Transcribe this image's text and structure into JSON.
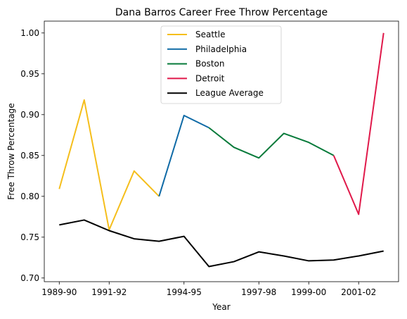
{
  "chart_data": {
    "type": "line",
    "title": "Dana Barros Career Free Throw Percentage",
    "xlabel": "Year",
    "ylabel": "Free Throw Percentage",
    "x": [
      "1989-90",
      "1990-91",
      "1991-92",
      "1992-93",
      "1993-94",
      "1994-95",
      "1995-96",
      "1996-97",
      "1997-98",
      "1998-99",
      "1999-00",
      "2000-01",
      "2001-02",
      "2002-03"
    ],
    "xticks": [
      "1989-90",
      "1991-92",
      "1994-95",
      "1997-98",
      "1999-00",
      "2001-02"
    ],
    "ylim": [
      0.7,
      1.0
    ],
    "yticks": [
      0.7,
      0.75,
      0.8,
      0.85,
      0.9,
      0.95,
      1.0
    ],
    "grid": false,
    "legend_position": "top-center",
    "series": [
      {
        "name": "Seattle",
        "color": "#f5be1b",
        "points": [
          [
            0,
            0.809
          ],
          [
            1,
            0.918
          ],
          [
            2,
            0.759
          ],
          [
            3,
            0.831
          ],
          [
            4,
            0.8
          ]
        ]
      },
      {
        "name": "Philadelphia",
        "color": "#0f6aa6",
        "points": [
          [
            4,
            0.8
          ],
          [
            5,
            0.899
          ],
          [
            6,
            0.884
          ]
        ]
      },
      {
        "name": "Boston",
        "color": "#077a3a",
        "points": [
          [
            6,
            0.884
          ],
          [
            7,
            0.86
          ],
          [
            8,
            0.847
          ],
          [
            9,
            0.877
          ],
          [
            10,
            0.866
          ],
          [
            11,
            0.85
          ]
        ]
      },
      {
        "name": "Detroit",
        "color": "#e0194a",
        "points": [
          [
            11,
            0.85
          ],
          [
            12,
            0.778
          ],
          [
            13,
            1.0
          ]
        ]
      },
      {
        "name": "League Average",
        "color": "#000000",
        "points": [
          [
            0,
            0.765
          ],
          [
            1,
            0.771
          ],
          [
            2,
            0.758
          ],
          [
            3,
            0.748
          ],
          [
            4,
            0.745
          ],
          [
            5,
            0.751
          ],
          [
            6,
            0.714
          ],
          [
            7,
            0.72
          ],
          [
            8,
            0.732
          ],
          [
            9,
            0.727
          ],
          [
            10,
            0.721
          ],
          [
            11,
            0.722
          ],
          [
            12,
            0.727
          ],
          [
            13,
            0.733
          ]
        ]
      }
    ]
  }
}
